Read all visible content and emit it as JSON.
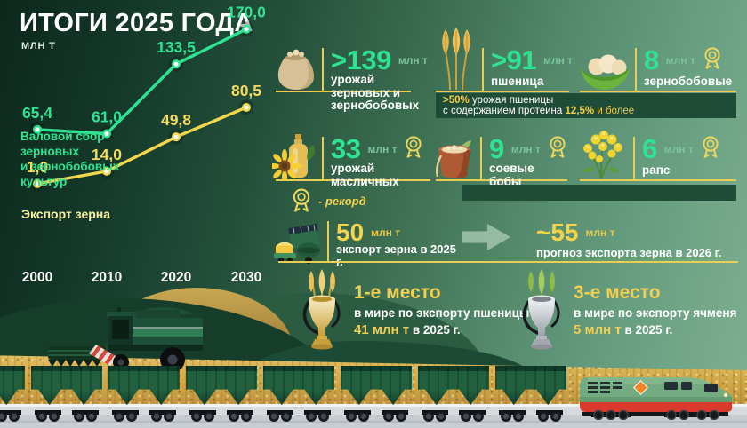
{
  "header": {
    "title": "ИТОГИ 2025 ГОДА",
    "units_note": "МЛН Т"
  },
  "chart_data": {
    "type": "line",
    "categories": [
      "2000",
      "2010",
      "2020",
      "2030"
    ],
    "series": [
      {
        "name": "Валовой сбор зерновых\nи зернобобовых культур",
        "color": "#2ee391",
        "values": [
          65.4,
          61.0,
          133.5,
          170.0
        ],
        "point_labels": [
          "65,4",
          "61,0",
          "133,5",
          "170,0"
        ]
      },
      {
        "name": "Экспорт зерна",
        "color": "#f2d64e",
        "values": [
          1.0,
          14.0,
          49.8,
          80.5
        ],
        "point_labels": [
          "1,0",
          "14,0",
          "49,8",
          "80,5"
        ]
      }
    ],
    "units": "млн т",
    "grid": false,
    "legend_position": "inline-left",
    "ylim": [
      0,
      180
    ]
  },
  "cards": [
    {
      "icon": "grain-sack-icon",
      "value": ">139",
      "unit": "млн т",
      "label": "урожай зерновых и зернобобовых",
      "medal": false
    },
    {
      "icon": "wheat-icon",
      "value": ">91",
      "unit": "млн т",
      "label": "пшеница",
      "medal": false
    },
    {
      "icon": "soybean-pod-icon",
      "value": "8",
      "unit": "млн т",
      "label": "зернобобовые",
      "medal": true
    },
    {
      "icon": "sunflower-oil-icon",
      "value": "33",
      "unit": "млн т",
      "label": "урожай масличных",
      "medal": true
    },
    {
      "icon": "soybean-pot-icon",
      "value": "9",
      "unit": "млн т",
      "label": "соевые бобы",
      "medal": true
    },
    {
      "icon": "rapeseed-icon",
      "value": "6",
      "unit": "млн т",
      "label": "рапс",
      "medal": true
    }
  ],
  "protein_note": {
    "hl1": ">50%",
    "t1": "урожая пшеницы",
    "t2": "с содержанием протеина",
    "hl2": "12,5%",
    "t3": "и более"
  },
  "record_legend": "- рекорд",
  "export_row": {
    "current_value": "50",
    "current_unit": "млн т",
    "current_label": "экспорт зерна в 2025 г.",
    "forecast_value": "~55",
    "forecast_unit": "млн т",
    "forecast_label": "прогноз экспорта зерна в 2026 г."
  },
  "rankings": [
    {
      "trophy": "gold",
      "title": "1-е место",
      "line": "в мире по экспорту пшеницы",
      "highlight": "41 млн т",
      "rest": "в 2025 г."
    },
    {
      "trophy": "silver",
      "title": "3-е место",
      "line": "в мире по экспорту ячменя",
      "highlight": "5 млн т",
      "rest": "в 2025 г."
    }
  ],
  "colors": {
    "accent_green": "#2ee391",
    "accent_yellow": "#f2d44f",
    "line_yellow": "#e9ce55",
    "bg_dark": "#0b281c",
    "bg_light": "#7eb091",
    "note_box": "#1f4c37",
    "wheat": "#d2a948"
  }
}
